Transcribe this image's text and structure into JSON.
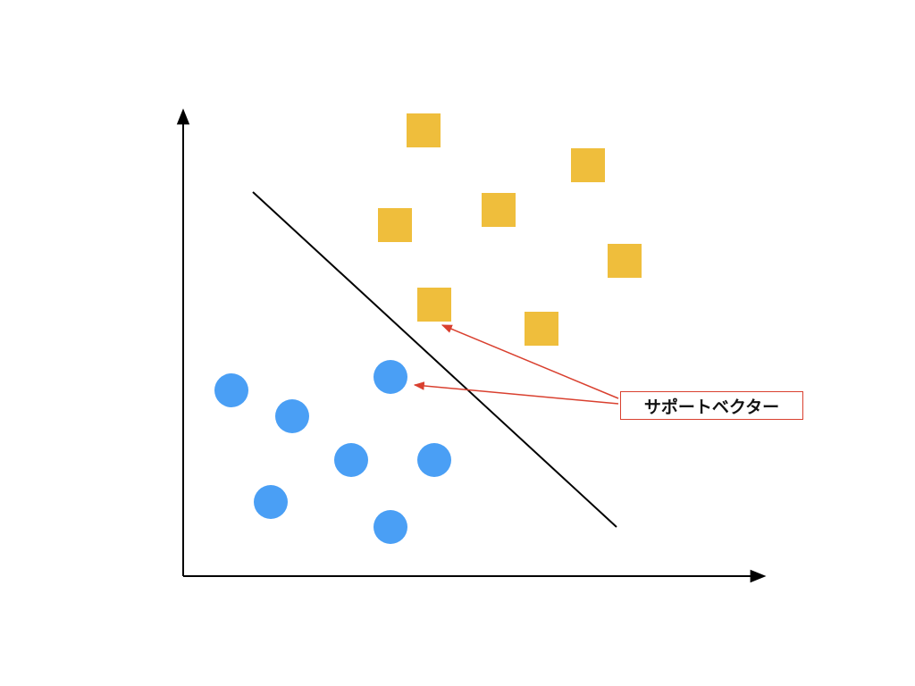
{
  "diagram": {
    "annotation": {
      "label": "サポートベクター",
      "color": "#d9402f"
    },
    "colors": {
      "class_square": "#efbe3c",
      "class_circle": "#4a9ff5",
      "axis": "#000000",
      "decision_boundary": "#000000",
      "pointer_arrow": "#d9402f"
    },
    "elements": {
      "class_square_count": 7,
      "class_circle_count": 7,
      "support_vectors": [
        "square",
        "circle"
      ],
      "x_axis_icon": "arrow-right-icon",
      "y_axis_icon": "arrow-up-icon"
    }
  }
}
